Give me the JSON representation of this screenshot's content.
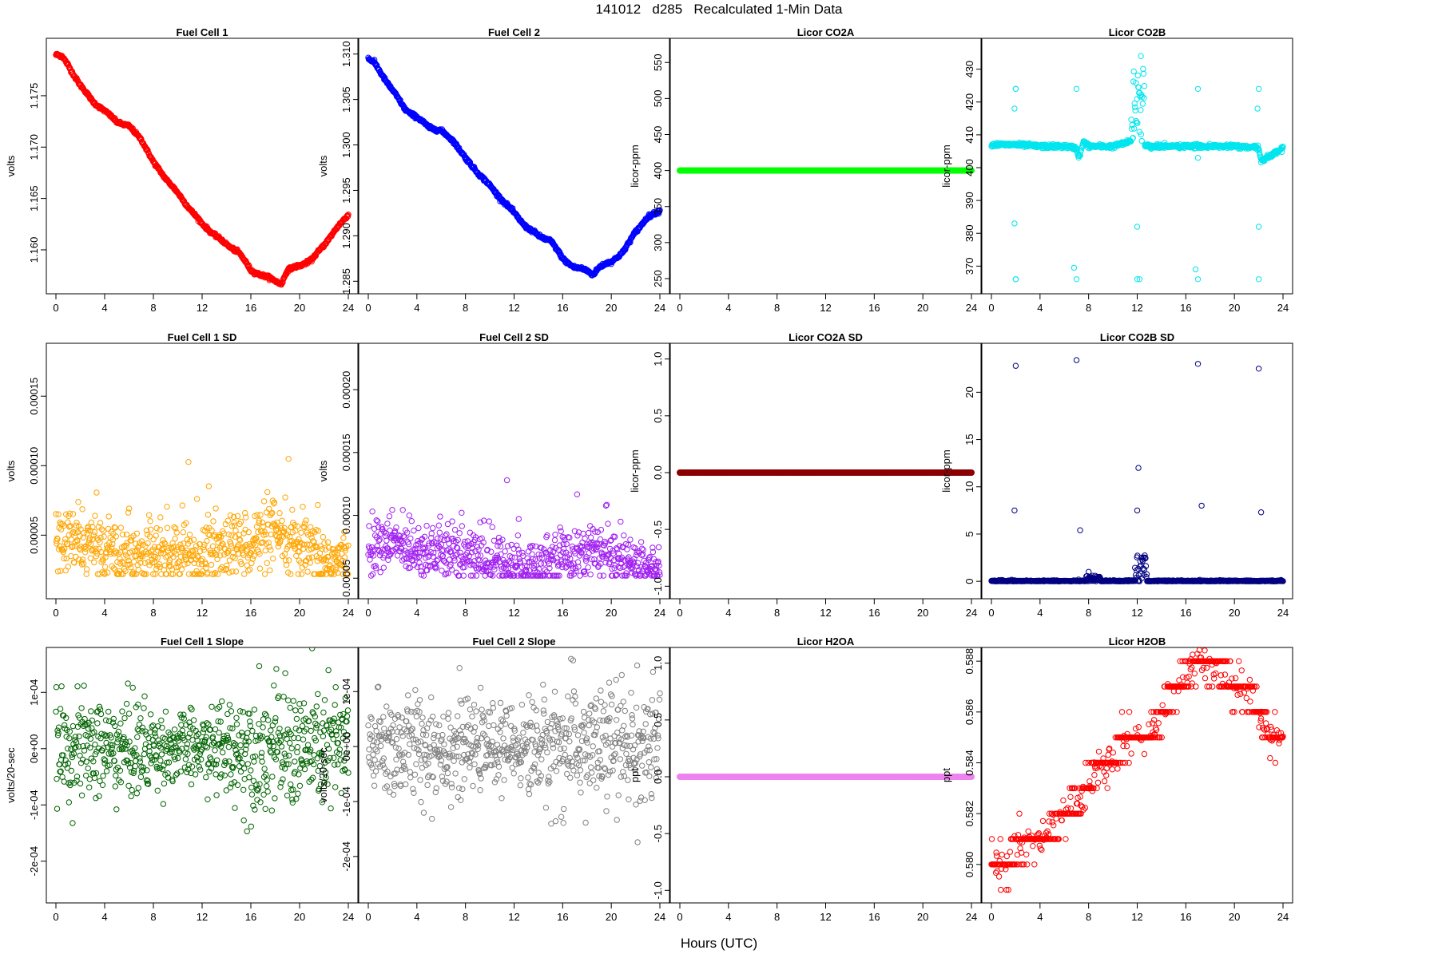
{
  "page": {
    "title": "141012   d285   Recalculated 1-Min Data",
    "x_axis_label": "Hours (UTC)"
  },
  "chart_data": [
    {
      "type": "scatter",
      "title": "Fuel Cell 1",
      "ylabel": "volts",
      "color": "#ff0000",
      "xlim": [
        0,
        24
      ],
      "ylim": [
        1.1565,
        1.1795
      ],
      "yticks": [
        1.16,
        1.165,
        1.17,
        1.175
      ],
      "ytick_labels": [
        "1.160",
        "1.165",
        "1.170",
        "1.175"
      ],
      "xticks": [
        0,
        4,
        8,
        12,
        16,
        20,
        24
      ],
      "x": [
        0,
        0.5,
        1,
        2,
        3,
        4,
        5,
        6,
        7,
        8,
        9,
        10,
        11,
        12,
        13,
        14,
        15,
        16,
        17,
        18,
        18.5,
        19,
        20,
        21,
        22,
        23,
        24
      ],
      "y": [
        1.179,
        1.1788,
        1.178,
        1.176,
        1.1745,
        1.1735,
        1.1725,
        1.172,
        1.1708,
        1.1685,
        1.167,
        1.1655,
        1.164,
        1.1625,
        1.1615,
        1.1605,
        1.1598,
        1.158,
        1.1575,
        1.157,
        1.1567,
        1.158,
        1.1585,
        1.159,
        1.1605,
        1.162,
        1.1635
      ]
    },
    {
      "type": "scatter",
      "title": "Fuel Cell 2",
      "ylabel": "volts",
      "color": "#0000ff",
      "xlim": [
        0,
        24
      ],
      "ylim": [
        1.2845,
        1.3105
      ],
      "yticks": [
        1.285,
        1.29,
        1.295,
        1.3,
        1.305,
        1.31
      ],
      "ytick_labels": [
        "1.285",
        "1.290",
        "1.295",
        "1.300",
        "1.305",
        "1.310"
      ],
      "xticks": [
        0,
        4,
        8,
        12,
        16,
        20,
        24
      ],
      "x": [
        0,
        0.5,
        1,
        2,
        3,
        4,
        5,
        6,
        7,
        8,
        9,
        10,
        11,
        12,
        13,
        14,
        15,
        16,
        17,
        18,
        18.5,
        19,
        20,
        21,
        22,
        23,
        24
      ],
      "y": [
        1.3095,
        1.309,
        1.308,
        1.306,
        1.304,
        1.303,
        1.302,
        1.3015,
        1.3005,
        1.2985,
        1.297,
        1.2955,
        1.294,
        1.2925,
        1.291,
        1.29,
        1.2895,
        1.2875,
        1.2865,
        1.2862,
        1.2858,
        1.2865,
        1.2872,
        1.2882,
        1.2905,
        1.292,
        1.2928
      ]
    },
    {
      "type": "scatter",
      "title": "Licor CO2A",
      "ylabel": "licor-ppm",
      "color": "#00ff00",
      "xlim": [
        0,
        24
      ],
      "ylim": [
        240,
        568
      ],
      "yticks": [
        250,
        300,
        350,
        400,
        450,
        500,
        550
      ],
      "ytick_labels": [
        "250",
        "300",
        "350",
        "400",
        "450",
        "500",
        "550"
      ],
      "xticks": [
        0,
        4,
        8,
        12,
        16,
        20,
        24
      ],
      "x": [
        0,
        24
      ],
      "y": [
        400,
        400
      ]
    },
    {
      "type": "scatter",
      "title": "Licor CO2B",
      "ylabel": "licor-ppm",
      "color": "#00e5ee",
      "xlim": [
        0,
        24
      ],
      "ylim": [
        364,
        436
      ],
      "yticks": [
        370,
        380,
        390,
        400,
        410,
        420,
        430
      ],
      "ytick_labels": [
        "370",
        "380",
        "390",
        "400",
        "410",
        "420",
        "430"
      ],
      "xticks": [
        0,
        4,
        8,
        12,
        16,
        20,
        24
      ],
      "x": [
        0,
        2,
        4,
        6,
        7,
        7.2,
        7.6,
        8,
        10,
        11.5,
        12,
        12.2,
        12.5,
        13,
        16,
        17,
        18,
        20,
        22,
        22.2,
        24
      ],
      "y": [
        407,
        407,
        406.5,
        406.5,
        406,
        403,
        408,
        406.5,
        406.5,
        408,
        425,
        415,
        407,
        406.5,
        406.5,
        406.5,
        406.5,
        406.5,
        406,
        402,
        406
      ]
    },
    {
      "type": "scatter",
      "title": "Fuel Cell 1 SD",
      "ylabel": "volts",
      "color": "#ffa500",
      "xlim": [
        0,
        24
      ],
      "ylim": [
        1e-05,
        0.00018
      ],
      "yticks": [
        5e-05,
        0.0001,
        0.00015
      ],
      "ytick_labels": [
        "0.00005",
        "0.00010",
        "0.00015"
      ],
      "xticks": [
        0,
        4,
        8,
        12,
        16,
        20,
        24
      ],
      "x": [
        0,
        2,
        4,
        6,
        8,
        10,
        12,
        14,
        16,
        18,
        20,
        22,
        24
      ],
      "y": [
        4.5e-05,
        4.5e-05,
        4e-05,
        3.8e-05,
        3.5e-05,
        3.6e-05,
        3.5e-05,
        4e-05,
        4.5e-05,
        5e-05,
        4e-05,
        3.2e-05,
        3e-05
      ]
    },
    {
      "type": "scatter",
      "title": "Fuel Cell 2 SD",
      "ylabel": "volts",
      "color": "#a020f0",
      "xlim": [
        0,
        24
      ],
      "ylim": [
        4e-05,
        0.000228
      ],
      "yticks": [
        5e-05,
        0.0001,
        0.00015,
        0.0002
      ],
      "ytick_labels": [
        "0.00005",
        "0.00010",
        "0.00015",
        "0.00020"
      ],
      "xticks": [
        0,
        4,
        8,
        12,
        16,
        20,
        24
      ],
      "x": [
        0,
        2,
        4,
        6,
        8,
        10,
        12,
        14,
        16,
        18,
        20,
        22,
        24
      ],
      "y": [
        7.5e-05,
        7.8e-05,
        7.5e-05,
        7e-05,
        6.8e-05,
        6.5e-05,
        6e-05,
        6e-05,
        6.8e-05,
        7.2e-05,
        6.5e-05,
        6e-05,
        5.5e-05
      ]
    },
    {
      "type": "scatter",
      "title": "Licor CO2A SD",
      "ylabel": "licor-ppm",
      "color": "#8b0000",
      "xlim": [
        0,
        24
      ],
      "ylim": [
        -1.04,
        1.04
      ],
      "yticks": [
        -1,
        -0.5,
        0,
        0.5,
        1
      ],
      "ytick_labels": [
        "-1.0",
        "-0.5",
        "0.0",
        "0.5",
        "1.0"
      ],
      "xticks": [
        0,
        4,
        8,
        12,
        16,
        20,
        24
      ],
      "x": [
        0,
        24
      ],
      "y": [
        0,
        0
      ]
    },
    {
      "type": "scatter",
      "title": "Licor CO2B SD",
      "ylabel": "licor-ppm",
      "color": "#000080",
      "xlim": [
        0,
        24
      ],
      "ylim": [
        -1,
        24
      ],
      "yticks": [
        0,
        5,
        10,
        15,
        20
      ],
      "ytick_labels": [
        "0",
        "5",
        "10",
        "15",
        "20"
      ],
      "xticks": [
        0,
        4,
        8,
        12,
        16,
        20,
        24
      ],
      "x": [
        0,
        1.9,
        2,
        7,
        7.3,
        8,
        12,
        12.1,
        12.5,
        13,
        17,
        17.3,
        22,
        22.2,
        24
      ],
      "y": [
        0,
        7.5,
        22.8,
        23.4,
        5.4,
        1,
        7.5,
        12,
        2.5,
        0,
        23,
        8,
        22.5,
        7.3,
        0
      ]
    },
    {
      "type": "scatter",
      "title": "Fuel Cell 1 Slope",
      "ylabel": "volts/20-sec",
      "color": "#006400",
      "xlim": [
        0,
        24
      ],
      "ylim": [
        -0.00026,
        0.00016
      ],
      "yticks": [
        -0.0002,
        -0.0001,
        0,
        0.0001
      ],
      "ytick_labels": [
        "-2e-04",
        "-1e-04",
        "0e+00",
        "1e-04"
      ],
      "xticks": [
        0,
        4,
        8,
        12,
        16,
        20,
        24
      ],
      "x": [
        0,
        4,
        8,
        12,
        16,
        20,
        24
      ],
      "y": [
        0,
        0,
        0,
        0,
        0,
        0,
        0
      ]
    },
    {
      "type": "scatter",
      "title": "Fuel Cell 2 Slope",
      "ylabel": "volts/20-sec",
      "color": "#808080",
      "xlim": [
        0,
        24
      ],
      "ylim": [
        -0.00027,
        0.00016
      ],
      "yticks": [
        -0.0002,
        -0.0001,
        0,
        0.0001
      ],
      "ytick_labels": [
        "-2e-04",
        "-1e-04",
        "0e+00",
        "1e-04"
      ],
      "xticks": [
        0,
        4,
        8,
        12,
        16,
        20,
        24
      ],
      "x": [
        0,
        4,
        8,
        12,
        16,
        20,
        24
      ],
      "y": [
        0,
        0,
        0,
        0,
        0,
        0,
        0
      ]
    },
    {
      "type": "scatter",
      "title": "Licor H2OA",
      "ylabel": "ppt",
      "color": "#ee82ee",
      "xlim": [
        0,
        24
      ],
      "ylim": [
        -1.04,
        1.04
      ],
      "yticks": [
        -1,
        -0.5,
        0,
        0.5,
        1
      ],
      "ytick_labels": [
        "-1.0",
        "-0.5",
        "0.0",
        "0.5",
        "1.0"
      ],
      "xticks": [
        0,
        4,
        8,
        12,
        16,
        20,
        24
      ],
      "x": [
        0,
        24
      ],
      "y": [
        0,
        0
      ]
    },
    {
      "type": "scatter",
      "title": "Licor H2OB",
      "ylabel": "ppt",
      "color": "#ff0000",
      "xlim": [
        0,
        24
      ],
      "ylim": [
        0.5788,
        0.5881
      ],
      "yticks": [
        0.58,
        0.582,
        0.584,
        0.586,
        0.588
      ],
      "ytick_labels": [
        "0.580",
        "0.582",
        "0.584",
        "0.586",
        "0.588"
      ],
      "xticks": [
        0,
        4,
        8,
        12,
        16,
        20,
        24
      ],
      "x": [
        0,
        1,
        2,
        3,
        4,
        5,
        6,
        7,
        8,
        9,
        10,
        11,
        12,
        13,
        14,
        15,
        16,
        17,
        18,
        19,
        20,
        21,
        22,
        23,
        24
      ],
      "y": [
        0.58,
        0.58,
        0.5805,
        0.581,
        0.581,
        0.5815,
        0.582,
        0.5825,
        0.583,
        0.584,
        0.584,
        0.585,
        0.585,
        0.585,
        0.586,
        0.587,
        0.5875,
        0.588,
        0.588,
        0.5875,
        0.587,
        0.587,
        0.586,
        0.585,
        0.585
      ]
    }
  ]
}
